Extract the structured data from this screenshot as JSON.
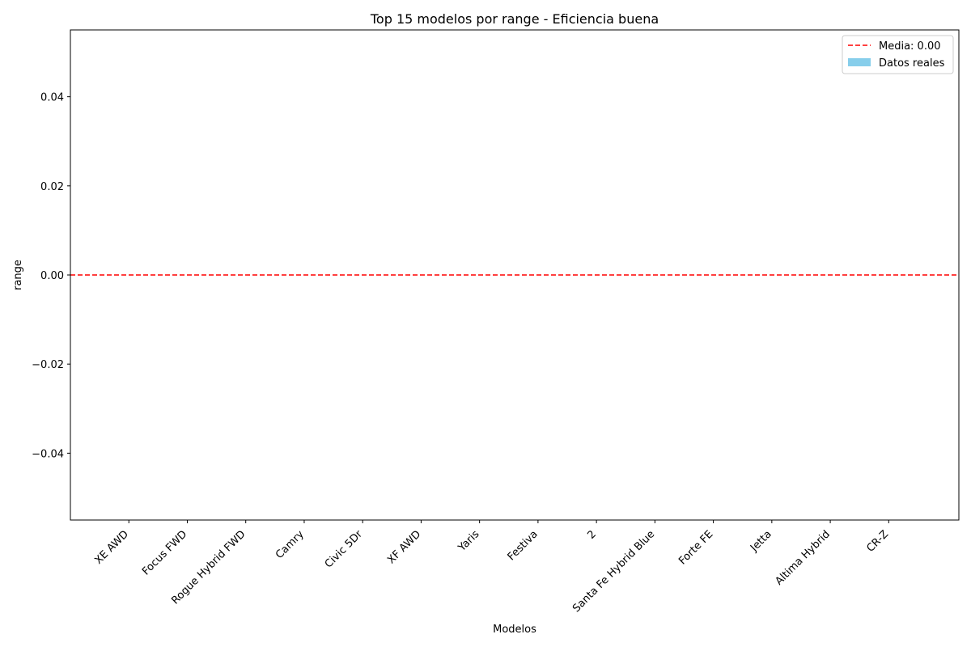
{
  "chart_data": {
    "type": "bar",
    "title": "Top 15 modelos por range - Eficiencia buena",
    "xlabel": "Modelos",
    "ylabel": "range",
    "categories": [
      "XE AWD",
      "Focus FWD",
      "Rogue Hybrid  FWD",
      "Camry",
      "Civic 5Dr",
      "XF AWD",
      "Yaris",
      "Festiva",
      "2",
      "Santa Fe Hybrid Blue",
      "Forte FE",
      "Jetta",
      "Altima Hybrid",
      "CR-Z"
    ],
    "series": [
      {
        "name": "Datos reales",
        "values": [
          0,
          0,
          0,
          0,
          0,
          0,
          0,
          0,
          0,
          0,
          0,
          0,
          0,
          0
        ],
        "color": "#87ceeb"
      }
    ],
    "mean_line": {
      "label": "Media: 0.00",
      "value": 0.0,
      "color": "#ff0000",
      "style": "dashed"
    },
    "ylim": [
      -0.055,
      0.055
    ],
    "yticks": [
      -0.04,
      -0.02,
      0.0,
      0.02,
      0.04
    ],
    "ytick_labels": [
      "−0.04",
      "−0.02",
      "0.00",
      "0.02",
      "0.04"
    ],
    "xlim": [
      -1.0,
      14.2
    ],
    "grid": false,
    "legend_position": "top-right"
  }
}
